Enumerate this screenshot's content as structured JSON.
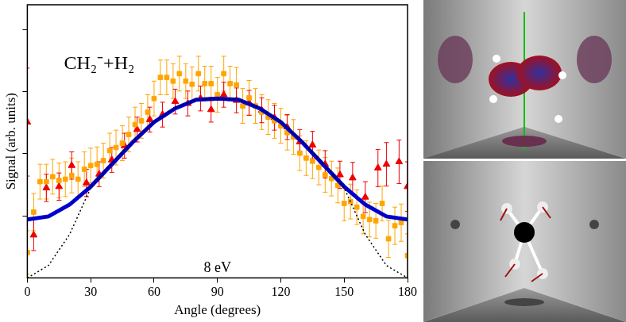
{
  "chart_data": {
    "type": "scatter",
    "xlabel": "Angle (degrees)",
    "ylabel": "Signal (arb. units)",
    "annotations": [
      "CH₂⁻+H₂",
      "8 eV"
    ],
    "xlim": [
      0,
      180
    ],
    "xticks": [
      0,
      30,
      60,
      90,
      120,
      150,
      180
    ],
    "ylim": [
      0,
      4.4
    ],
    "yticks": [
      1,
      2,
      3,
      4
    ],
    "tick_labels": "x",
    "grid": false,
    "series": [
      {
        "type": "line",
        "color": "#000000",
        "line_style": "dotted",
        "marker": "none",
        "x": [
          0,
          10,
          20,
          30,
          40,
          50,
          60,
          70,
          80,
          90,
          100,
          110,
          120,
          130,
          140,
          150,
          160,
          170,
          180
        ],
        "values": [
          0,
          0.2,
          0.7,
          1.45,
          1.85,
          2.2,
          2.52,
          2.74,
          2.87,
          2.89,
          2.87,
          2.74,
          2.52,
          2.2,
          1.85,
          1.45,
          0.7,
          0.2,
          0
        ]
      },
      {
        "type": "line",
        "color": "#0000cc",
        "line_style": "solid",
        "marker": "none",
        "x": [
          0,
          10,
          20,
          30,
          40,
          50,
          60,
          70,
          80,
          90,
          100,
          110,
          120,
          130,
          140,
          150,
          160,
          170,
          180
        ],
        "values": [
          0.94,
          0.99,
          1.18,
          1.47,
          1.83,
          2.19,
          2.51,
          2.73,
          2.87,
          2.89,
          2.87,
          2.73,
          2.51,
          2.19,
          1.83,
          1.47,
          1.18,
          0.99,
          0.94
        ]
      },
      {
        "type": "scatter",
        "color": "#ffa500",
        "marker": "square",
        "x": [
          0,
          3,
          6,
          9,
          12,
          15,
          18,
          21,
          24,
          27,
          30,
          33,
          36,
          39,
          42,
          45,
          48,
          51,
          54,
          57,
          60,
          63,
          66,
          69,
          72,
          75,
          78,
          81,
          84,
          87,
          90,
          93,
          96,
          99,
          102,
          105,
          108,
          111,
          114,
          117,
          120,
          123,
          126,
          129,
          132,
          135,
          138,
          141,
          144,
          147,
          150,
          153,
          156,
          159,
          162,
          165,
          168,
          171,
          174,
          177,
          180
        ],
        "values": [
          0.41,
          1.06,
          1.55,
          1.55,
          1.63,
          1.57,
          1.59,
          1.65,
          1.59,
          1.75,
          1.81,
          1.83,
          1.89,
          2.05,
          2.1,
          2.17,
          2.31,
          2.47,
          2.53,
          2.67,
          2.89,
          3.23,
          3.23,
          3.17,
          3.29,
          3.17,
          3.12,
          3.29,
          3.13,
          3.13,
          2.95,
          3.29,
          3.13,
          3.11,
          2.77,
          2.9,
          2.77,
          2.67,
          2.59,
          2.53,
          2.45,
          2.34,
          2.27,
          2.01,
          1.93,
          1.88,
          1.78,
          1.66,
          1.6,
          1.49,
          1.2,
          1.23,
          1.14,
          0.99,
          0.94,
          0.92,
          1.2,
          0.63,
          0.84,
          0.89,
          0.36
        ],
        "error": [
          0.35,
          0.3,
          0.28,
          0.28,
          0.28,
          0.28,
          0.28,
          0.28,
          0.28,
          0.28,
          0.28,
          0.28,
          0.28,
          0.28,
          0.28,
          0.28,
          0.28,
          0.28,
          0.28,
          0.28,
          0.28,
          0.28,
          0.28,
          0.28,
          0.28,
          0.28,
          0.28,
          0.28,
          0.28,
          0.28,
          0.28,
          0.28,
          0.28,
          0.28,
          0.28,
          0.28,
          0.28,
          0.28,
          0.28,
          0.28,
          0.28,
          0.28,
          0.28,
          0.28,
          0.28,
          0.28,
          0.28,
          0.28,
          0.28,
          0.28,
          0.28,
          0.28,
          0.28,
          0.28,
          0.28,
          0.28,
          0.28,
          0.3,
          0.3,
          0.3,
          0.35
        ]
      },
      {
        "type": "scatter",
        "color": "#ee0000",
        "marker": "triangle",
        "x": [
          0,
          3,
          9,
          15,
          21,
          28,
          34,
          40,
          46,
          52,
          58,
          64,
          70,
          76,
          82,
          87,
          93,
          99,
          105,
          111,
          117,
          123,
          129,
          135,
          141,
          148,
          154,
          160,
          166,
          170,
          176,
          180
        ],
        "values": [
          2.51,
          0.69,
          1.45,
          1.47,
          1.81,
          1.53,
          1.67,
          1.9,
          2.13,
          2.39,
          2.55,
          2.63,
          2.84,
          2.81,
          2.89,
          2.71,
          2.95,
          2.86,
          2.82,
          2.7,
          2.58,
          2.43,
          2.19,
          2.14,
          1.83,
          1.66,
          1.61,
          1.3,
          1.77,
          1.83,
          1.87,
          1.47
        ],
        "error": [
          0.87,
          0.25,
          0.22,
          0.22,
          0.22,
          0.22,
          0.2,
          0.2,
          0.2,
          0.2,
          0.2,
          0.2,
          0.2,
          0.2,
          0.2,
          0.2,
          0.2,
          0.2,
          0.2,
          0.2,
          0.2,
          0.2,
          0.2,
          0.22,
          0.22,
          0.22,
          0.25,
          0.25,
          0.3,
          0.35,
          0.35,
          0.4
        ]
      }
    ]
  }
}
